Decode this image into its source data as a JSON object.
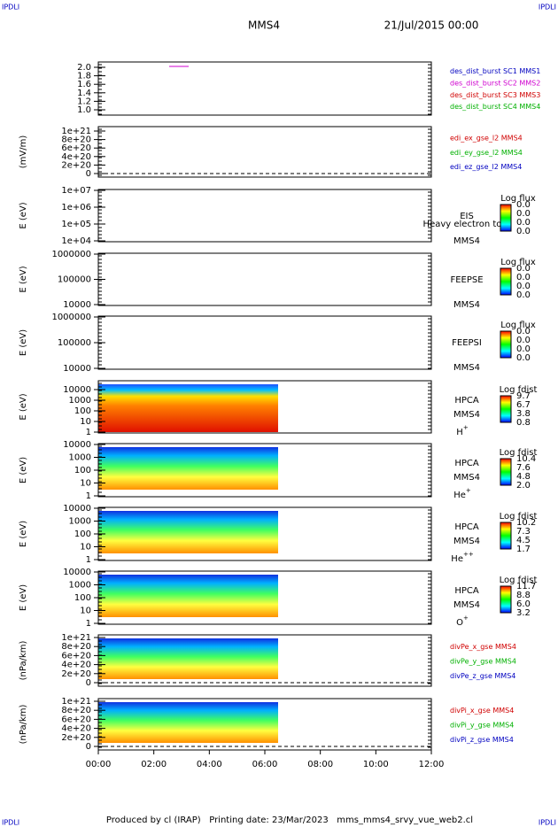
{
  "header": {
    "title": "MMS4",
    "date": "21/Jul/2015 00:00",
    "corner_marks": [
      "IPDLI",
      "IPDLI",
      "IPDLI",
      "IPDLI"
    ]
  },
  "panels": [
    {
      "ylabel": "",
      "yticks": [
        "2.0",
        "1.8",
        "1.6",
        "1.4",
        "1.2",
        "1.0"
      ],
      "right_labels": [
        {
          "text": "des_dist_burst SC1 MMS1",
          "color": "#0000c0"
        },
        {
          "text": "des_dist_burst SC2 MMS2",
          "color": "#d000d0"
        },
        {
          "text": "des_dist_burst SC3 MMS3",
          "color": "#d00000"
        },
        {
          "text": "des_dist_burst SC4 MMS4",
          "color": "#00b000"
        }
      ]
    },
    {
      "ylabel": "(mV/m)",
      "yticks": [
        "1e+21",
        "8e+20",
        "6e+20",
        "4e+20",
        "2e+20",
        "0"
      ],
      "right_labels": [
        {
          "text": "edi_ex_gse_l2 MMS4",
          "color": "#d00000"
        },
        {
          "text": "edi_ey_gse_l2 MMS4",
          "color": "#00b000"
        },
        {
          "text": "edi_ez_gse_l2 MMS4",
          "color": "#0000c0"
        }
      ]
    },
    {
      "ylabel": "E (eV)",
      "yticks": [
        "1e+07",
        "1e+06",
        "1e+05",
        "1e+04"
      ],
      "instrument": [
        "EIS",
        "Heavy electron to",
        "MMS4"
      ],
      "colorbar": {
        "title": "Log flux",
        "labels": [
          "0.0",
          "0.0",
          "0.0",
          "0.0"
        ]
      }
    },
    {
      "ylabel": "E (eV)",
      "yticks": [
        "1000000",
        "100000",
        "10000"
      ],
      "instrument": [
        "FEEPSE",
        "MMS4"
      ],
      "colorbar": {
        "title": "Log flux",
        "labels": [
          "0.0",
          "0.0",
          "0.0",
          "0.0"
        ]
      }
    },
    {
      "ylabel": "E (eV)",
      "yticks": [
        "1000000",
        "100000",
        "10000"
      ],
      "instrument": [
        "FEEPSI",
        "MMS4"
      ],
      "colorbar": {
        "title": "Log flux",
        "labels": [
          "0.0",
          "0.0",
          "0.0",
          "0.0"
        ]
      }
    },
    {
      "ylabel": "E (eV)",
      "yticks": [
        "10000",
        "1000",
        "100",
        "10",
        "1"
      ],
      "instrument": [
        "HPCA",
        "MMS4"
      ],
      "species": [
        "H",
        "+"
      ],
      "colorbar": {
        "title": "Log fdist",
        "labels": [
          "9.7",
          "6.7",
          "3.8",
          "0.8"
        ]
      }
    },
    {
      "ylabel": "E (eV)",
      "yticks": [
        "10000",
        "1000",
        "100",
        "10",
        "1"
      ],
      "instrument": [
        "HPCA",
        "MMS4"
      ],
      "species": [
        "He",
        "+"
      ],
      "colorbar": {
        "title": "Log fdist",
        "labels": [
          "10.4",
          "7.6",
          "4.8",
          "2.0"
        ]
      }
    },
    {
      "ylabel": "E (eV)",
      "yticks": [
        "10000",
        "1000",
        "100",
        "10",
        "1"
      ],
      "instrument": [
        "HPCA",
        "MMS4"
      ],
      "species": [
        "He",
        "++"
      ],
      "colorbar": {
        "title": "Log fdist",
        "labels": [
          "10.2",
          "7.3",
          "4.5",
          "1.7"
        ]
      }
    },
    {
      "ylabel": "E (eV)",
      "yticks": [
        "10000",
        "1000",
        "100",
        "10",
        "1"
      ],
      "instrument": [
        "HPCA",
        "MMS4"
      ],
      "species": [
        "O",
        "+"
      ],
      "colorbar": {
        "title": "Log fdist",
        "labels": [
          "11.7",
          "8.8",
          "6.0",
          "3.2"
        ]
      }
    },
    {
      "ylabel": "(nPa/km)",
      "yticks": [
        "1e+21",
        "8e+20",
        "6e+20",
        "4e+20",
        "2e+20",
        "0"
      ],
      "right_labels": [
        {
          "text": "divPe_x_gse MMS4",
          "color": "#d00000"
        },
        {
          "text": "divPe_y_gse MMS4",
          "color": "#00b000"
        },
        {
          "text": "divPe_z_gse MMS4",
          "color": "#0000c0"
        }
      ]
    },
    {
      "ylabel": "(nPa/km)",
      "yticks": [
        "1e+21",
        "8e+20",
        "6e+20",
        "4e+20",
        "2e+20",
        "0"
      ],
      "right_labels": [
        {
          "text": "divPi_x_gse MMS4",
          "color": "#d00000"
        },
        {
          "text": "divPi_y_gse MMS4",
          "color": "#00b000"
        },
        {
          "text": "divPi_z_gse MMS4",
          "color": "#0000c0"
        }
      ]
    }
  ],
  "xticks": [
    "00:00",
    "02:00",
    "04:00",
    "06:00",
    "08:00",
    "10:00",
    "12:00"
  ],
  "footer": "Produced by cl (IRAP)   Printing date: 23/Mar/2023   mms_mms4_srvy_vue_web2.cl"
}
